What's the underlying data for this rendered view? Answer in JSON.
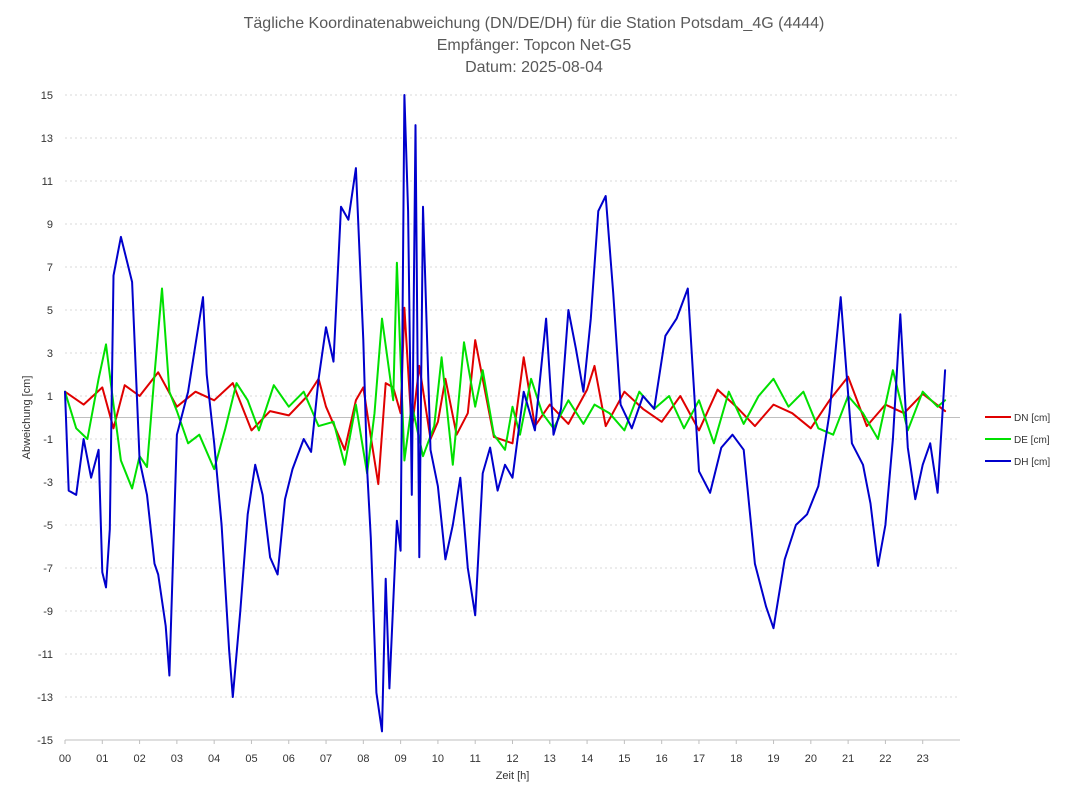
{
  "chart_data": {
    "type": "line",
    "title_lines": [
      "Tägliche Koordinatenabweichung (DN/DE/DH) für die Station Potsdam_4G (4444)",
      "Empfänger: Topcon Net-G5",
      "Datum: 2025-08-04"
    ],
    "xlabel": "Zeit [h]",
    "ylabel": "Abweichung [cm]",
    "xlim": [
      0,
      24
    ],
    "ylim": [
      -15,
      15
    ],
    "x_ticks": [
      0,
      1,
      2,
      3,
      4,
      5,
      6,
      7,
      8,
      9,
      10,
      11,
      12,
      13,
      14,
      15,
      16,
      17,
      18,
      19,
      20,
      21,
      22,
      23
    ],
    "x_tick_labels": [
      "00",
      "01",
      "02",
      "03",
      "04",
      "05",
      "06",
      "07",
      "08",
      "09",
      "10",
      "11",
      "12",
      "13",
      "14",
      "15",
      "16",
      "17",
      "18",
      "19",
      "20",
      "21",
      "22",
      "23"
    ],
    "y_ticks": [
      15,
      13,
      11,
      9,
      7,
      5,
      3,
      1,
      -1,
      -3,
      -5,
      -7,
      -9,
      -11,
      -13,
      -15
    ],
    "y_tick_labels": [
      "15",
      "13",
      "11",
      "9",
      "7",
      "5",
      "3",
      "1",
      "-1",
      "-3",
      "-5",
      "-7",
      "-9",
      "-11",
      "-13",
      "-15"
    ],
    "grid": "horizontal-dotted",
    "legend_position": "right",
    "series": [
      {
        "name": "DN [cm]",
        "color": "#e00000",
        "x": [
          0,
          0.5,
          1,
          1.3,
          1.6,
          2,
          2.5,
          3,
          3.5,
          4,
          4.5,
          5,
          5.5,
          6,
          6.5,
          6.8,
          7,
          7.5,
          7.8,
          8,
          8.2,
          8.4,
          8.6,
          8.8,
          9,
          9.1,
          9.3,
          9.5,
          9.8,
          10,
          10.2,
          10.5,
          10.8,
          11,
          11.5,
          12,
          12.3,
          12.6,
          13,
          13.5,
          14,
          14.2,
          14.5,
          15,
          15.5,
          16,
          16.5,
          17,
          17.5,
          18,
          18.5,
          19,
          19.5,
          20,
          20.5,
          21,
          21.5,
          22,
          22.5,
          23,
          23.6
        ],
        "y": [
          1.2,
          0.6,
          1.4,
          -0.5,
          1.5,
          1.0,
          2.1,
          0.5,
          1.2,
          0.8,
          1.6,
          -0.6,
          0.3,
          0.1,
          1.0,
          1.8,
          0.5,
          -1.5,
          0.8,
          1.4,
          -0.9,
          -3.1,
          1.6,
          1.4,
          0.2,
          5.1,
          -0.6,
          2.4,
          -1.0,
          -0.2,
          1.8,
          -0.8,
          0.2,
          3.6,
          -0.9,
          -1.2,
          2.8,
          -0.4,
          0.6,
          -0.3,
          1.3,
          2.4,
          -0.4,
          1.2,
          0.4,
          -0.2,
          1.0,
          -0.6,
          1.3,
          0.5,
          -0.4,
          0.6,
          0.2,
          -0.5,
          0.8,
          1.9,
          -0.4,
          0.6,
          0.2,
          1.1,
          0.3
        ]
      },
      {
        "name": "DE [cm]",
        "color": "#00e000",
        "x": [
          0,
          0.3,
          0.6,
          0.9,
          1.1,
          1.3,
          1.5,
          1.8,
          2.0,
          2.2,
          2.4,
          2.6,
          2.8,
          3.0,
          3.3,
          3.6,
          4.0,
          4.3,
          4.6,
          4.9,
          5.2,
          5.6,
          6.0,
          6.4,
          6.8,
          7.2,
          7.5,
          7.8,
          8.1,
          8.3,
          8.5,
          8.8,
          8.9,
          9.1,
          9.3,
          9.6,
          9.9,
          10.1,
          10.4,
          10.7,
          11.0,
          11.2,
          11.5,
          11.8,
          12.0,
          12.2,
          12.5,
          12.8,
          13.1,
          13.5,
          13.9,
          14.2,
          14.6,
          15.0,
          15.4,
          15.8,
          16.2,
          16.6,
          17.0,
          17.4,
          17.8,
          18.2,
          18.6,
          19.0,
          19.4,
          19.8,
          20.2,
          20.6,
          21.0,
          21.4,
          21.8,
          22.2,
          22.6,
          23.0,
          23.4,
          23.6
        ],
        "y": [
          1.2,
          -0.5,
          -1.0,
          1.8,
          3.4,
          0.6,
          -2.0,
          -3.3,
          -1.8,
          -2.3,
          2.0,
          6.0,
          1.2,
          0.3,
          -1.2,
          -0.8,
          -2.4,
          -0.5,
          1.6,
          0.8,
          -0.6,
          1.5,
          0.5,
          1.2,
          -0.4,
          -0.2,
          -2.2,
          0.6,
          -2.6,
          0.2,
          4.6,
          0.8,
          7.2,
          -2.0,
          0.6,
          -1.8,
          -0.4,
          2.8,
          -2.2,
          3.5,
          0.5,
          2.2,
          -0.8,
          -1.5,
          0.5,
          -0.8,
          1.8,
          0.2,
          -0.5,
          0.8,
          -0.3,
          0.6,
          0.2,
          -0.6,
          1.2,
          0.4,
          1.0,
          -0.5,
          0.8,
          -1.2,
          1.2,
          -0.3,
          1.0,
          1.8,
          0.5,
          1.2,
          -0.5,
          -0.8,
          1.0,
          0.2,
          -1.0,
          2.2,
          -0.6,
          1.2,
          0.5,
          0.8
        ]
      },
      {
        "name": "DH [cm]",
        "color": "#0000cc",
        "x": [
          0,
          0.1,
          0.3,
          0.5,
          0.7,
          0.9,
          1.0,
          1.1,
          1.2,
          1.3,
          1.5,
          1.7,
          1.8,
          2.0,
          2.2,
          2.4,
          2.5,
          2.7,
          2.8,
          3.0,
          3.3,
          3.5,
          3.7,
          3.8,
          4.0,
          4.2,
          4.4,
          4.5,
          4.7,
          4.9,
          5.1,
          5.3,
          5.5,
          5.7,
          5.9,
          6.1,
          6.4,
          6.6,
          6.8,
          7.0,
          7.2,
          7.4,
          7.6,
          7.8,
          8.0,
          8.1,
          8.2,
          8.35,
          8.5,
          8.6,
          8.7,
          8.9,
          9.0,
          9.1,
          9.2,
          9.3,
          9.4,
          9.5,
          9.6,
          9.8,
          10.0,
          10.2,
          10.4,
          10.6,
          10.8,
          11.0,
          11.2,
          11.4,
          11.6,
          11.8,
          12.0,
          12.3,
          12.6,
          12.9,
          13.1,
          13.3,
          13.5,
          13.7,
          13.9,
          14.1,
          14.3,
          14.5,
          14.7,
          14.9,
          15.2,
          15.5,
          15.8,
          16.1,
          16.4,
          16.7,
          17.0,
          17.3,
          17.6,
          17.9,
          18.2,
          18.5,
          18.8,
          19.0,
          19.3,
          19.6,
          19.9,
          20.2,
          20.5,
          20.8,
          21.1,
          21.4,
          21.6,
          21.8,
          22.0,
          22.2,
          22.4,
          22.6,
          22.8,
          23.0,
          23.2,
          23.4,
          23.6
        ],
        "y": [
          1.2,
          -3.4,
          -3.6,
          -1.0,
          -2.8,
          -1.5,
          -7.2,
          -7.9,
          -5.2,
          6.6,
          8.4,
          7.0,
          6.3,
          -2.0,
          -3.6,
          -6.8,
          -7.3,
          -9.7,
          -12.0,
          -0.8,
          1.2,
          3.4,
          5.6,
          2.0,
          -1.2,
          -5.0,
          -10.8,
          -13.0,
          -9.0,
          -4.5,
          -2.2,
          -3.6,
          -6.5,
          -7.3,
          -3.8,
          -2.4,
          -1.0,
          -1.6,
          1.8,
          4.2,
          2.6,
          9.8,
          9.2,
          11.6,
          3.6,
          -2.4,
          -5.6,
          -12.8,
          -14.6,
          -7.5,
          -12.6,
          -4.8,
          -6.2,
          15.0,
          9.6,
          -3.6,
          13.6,
          -6.5,
          9.8,
          -1.5,
          -3.2,
          -6.6,
          -5.0,
          -2.8,
          -7.0,
          -9.2,
          -2.6,
          -1.4,
          -3.4,
          -2.2,
          -2.8,
          1.2,
          -0.6,
          4.6,
          -0.8,
          0.4,
          5.0,
          3.2,
          1.2,
          4.6,
          9.6,
          10.3,
          5.8,
          0.6,
          -0.5,
          1.0,
          0.4,
          3.8,
          4.6,
          6.0,
          -2.5,
          -3.5,
          -1.4,
          -0.8,
          -1.5,
          -6.8,
          -8.8,
          -9.8,
          -6.6,
          -5.0,
          -4.5,
          -3.2,
          0.2,
          5.6,
          -1.2,
          -2.2,
          -4.0,
          -6.9,
          -5.0,
          -1.0,
          4.8,
          -1.4,
          -3.8,
          -2.2,
          -1.2,
          -3.5,
          2.2
        ]
      }
    ]
  }
}
